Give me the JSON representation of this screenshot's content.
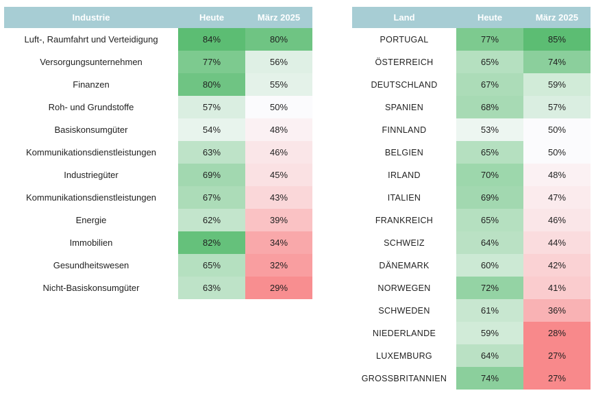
{
  "industry_table": {
    "headers": [
      "Industrie",
      "Heute",
      "März 2025"
    ],
    "rows": [
      {
        "name": "Luft-, Raumfahrt und Verteidigung",
        "today": "84%",
        "march": "80%"
      },
      {
        "name": "Versorgungsunternehmen",
        "today": "77%",
        "march": "56%"
      },
      {
        "name": "Finanzen",
        "today": "80%",
        "march": "55%"
      },
      {
        "name": "Roh- und Grundstoffe",
        "today": "57%",
        "march": "50%"
      },
      {
        "name": "Basiskonsumgüter",
        "today": "54%",
        "march": "48%"
      },
      {
        "name": "Kommunikationsdienstleistungen",
        "today": "63%",
        "march": "46%"
      },
      {
        "name": "Industriegüter",
        "today": "69%",
        "march": "45%"
      },
      {
        "name": "Kommunikationsdienstleistungen",
        "today": "67%",
        "march": "43%"
      },
      {
        "name": "Energie",
        "today": "62%",
        "march": "39%"
      },
      {
        "name": "Immobilien",
        "today": "82%",
        "march": "34%"
      },
      {
        "name": "Gesundheitswesen",
        "today": "65%",
        "march": "32%"
      },
      {
        "name": "Nicht-Basiskonsumgüter",
        "today": "63%",
        "march": "29%"
      }
    ]
  },
  "country_table": {
    "headers": [
      "Land",
      "Heute",
      "März 2025"
    ],
    "rows": [
      {
        "name": "PORTUGAL",
        "today": "77%",
        "march": "85%"
      },
      {
        "name": "ÖSTERREICH",
        "today": "65%",
        "march": "74%"
      },
      {
        "name": "DEUTSCHLAND",
        "today": "67%",
        "march": "59%"
      },
      {
        "name": "SPANIEN",
        "today": "68%",
        "march": "57%"
      },
      {
        "name": "FINNLAND",
        "today": "53%",
        "march": "50%"
      },
      {
        "name": "BELGIEN",
        "today": "65%",
        "march": "50%"
      },
      {
        "name": "IRLAND",
        "today": "70%",
        "march": "48%"
      },
      {
        "name": "ITALIEN",
        "today": "69%",
        "march": "47%"
      },
      {
        "name": "FRANKREICH",
        "today": "65%",
        "march": "46%"
      },
      {
        "name": "SCHWEIZ",
        "today": "64%",
        "march": "44%"
      },
      {
        "name": "DÄNEMARK",
        "today": "60%",
        "march": "42%"
      },
      {
        "name": "NORWEGEN",
        "today": "72%",
        "march": "41%"
      },
      {
        "name": "SCHWEDEN",
        "today": "61%",
        "march": "36%"
      },
      {
        "name": "NIEDERLANDE",
        "today": "59%",
        "march": "28%"
      },
      {
        "name": "LUXEMBURG",
        "today": "64%",
        "march": "27%"
      },
      {
        "name": "GROSSBRITANNIEN",
        "today": "74%",
        "march": "27%"
      }
    ]
  },
  "colors": {
    "header_bg": "#a7cdd4",
    "high_green": "#5cbd73",
    "neutral": "#fbfbfd",
    "low_red": "#f8898b"
  }
}
